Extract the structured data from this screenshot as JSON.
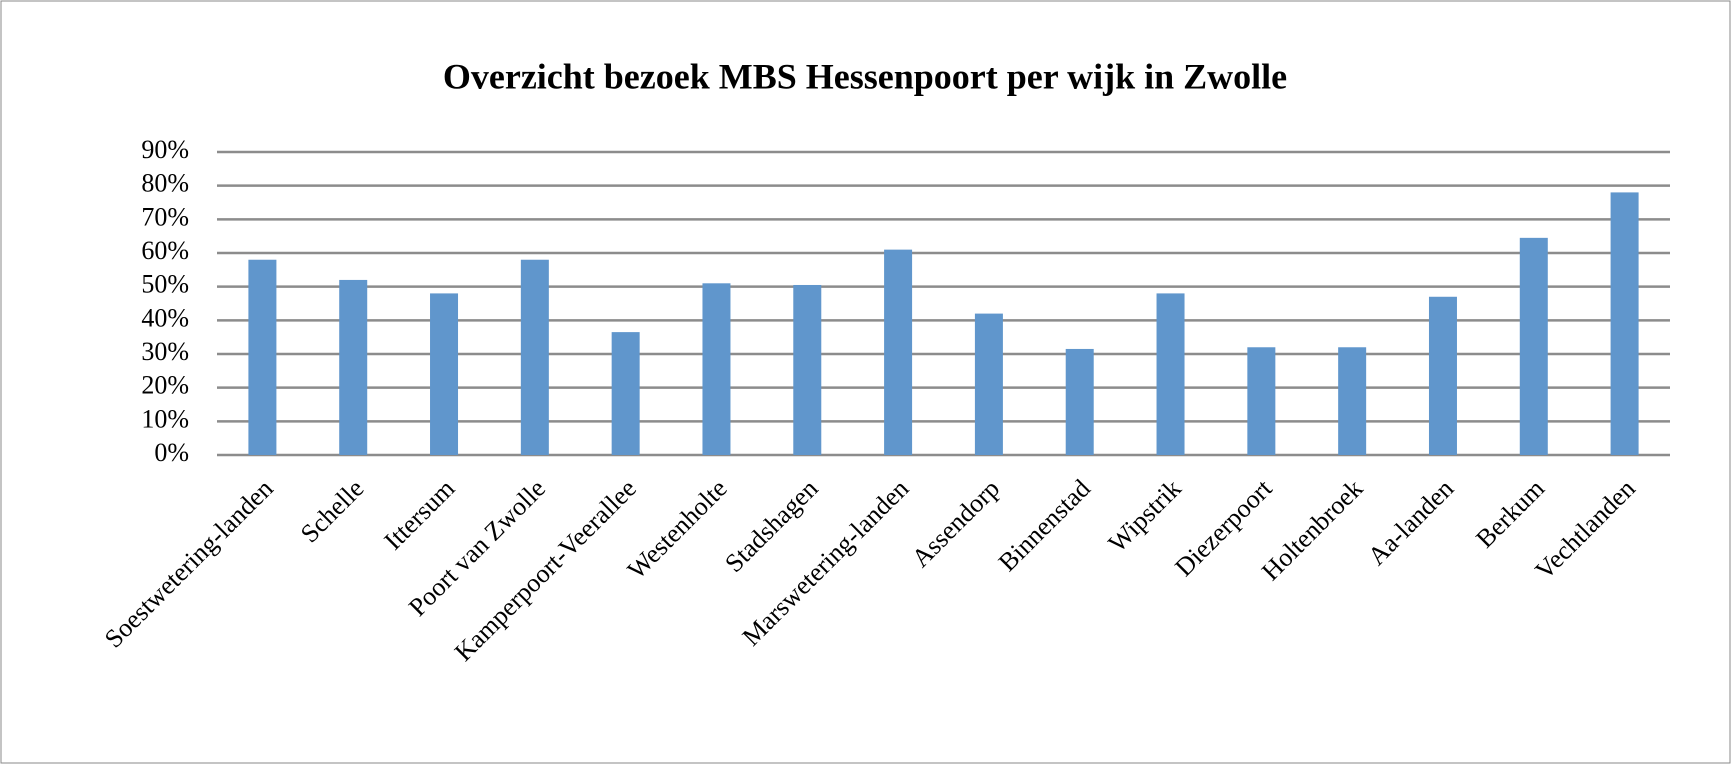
{
  "chart_data": {
    "type": "bar",
    "title": "Overzicht bezoek MBS Hessenpoort per wijk in Zwolle",
    "categories": [
      "Soestwetering-landen",
      "Schelle",
      "Ittersum",
      "Poort van Zwolle",
      "Kamperpoort-Veerallee",
      "Westenholte",
      "Stadshagen",
      "Marswetering-landen",
      "Assendorp",
      "Binnenstad",
      "Wipstrik",
      "Diezerpoort",
      "Holtenbroek",
      "Aa-landen",
      "Berkum",
      "Vechtlanden"
    ],
    "values": [
      58,
      52,
      48,
      58,
      36.5,
      51,
      50.5,
      61,
      42,
      31.5,
      48,
      32,
      32,
      47,
      64.5,
      78
    ],
    "color": "#6096cc",
    "ylim": [
      0,
      90
    ],
    "yticks": [
      {
        "value": 0,
        "label": "0%"
      },
      {
        "value": 10,
        "label": "10%"
      },
      {
        "value": 20,
        "label": "20%"
      },
      {
        "value": 30,
        "label": "30%"
      },
      {
        "value": 40,
        "label": "40%"
      },
      {
        "value": 50,
        "label": "50%"
      },
      {
        "value": 60,
        "label": "60%"
      },
      {
        "value": 70,
        "label": "70%"
      },
      {
        "value": 80,
        "label": "80%"
      },
      {
        "value": 90,
        "label": "90%"
      }
    ],
    "grid": true
  }
}
